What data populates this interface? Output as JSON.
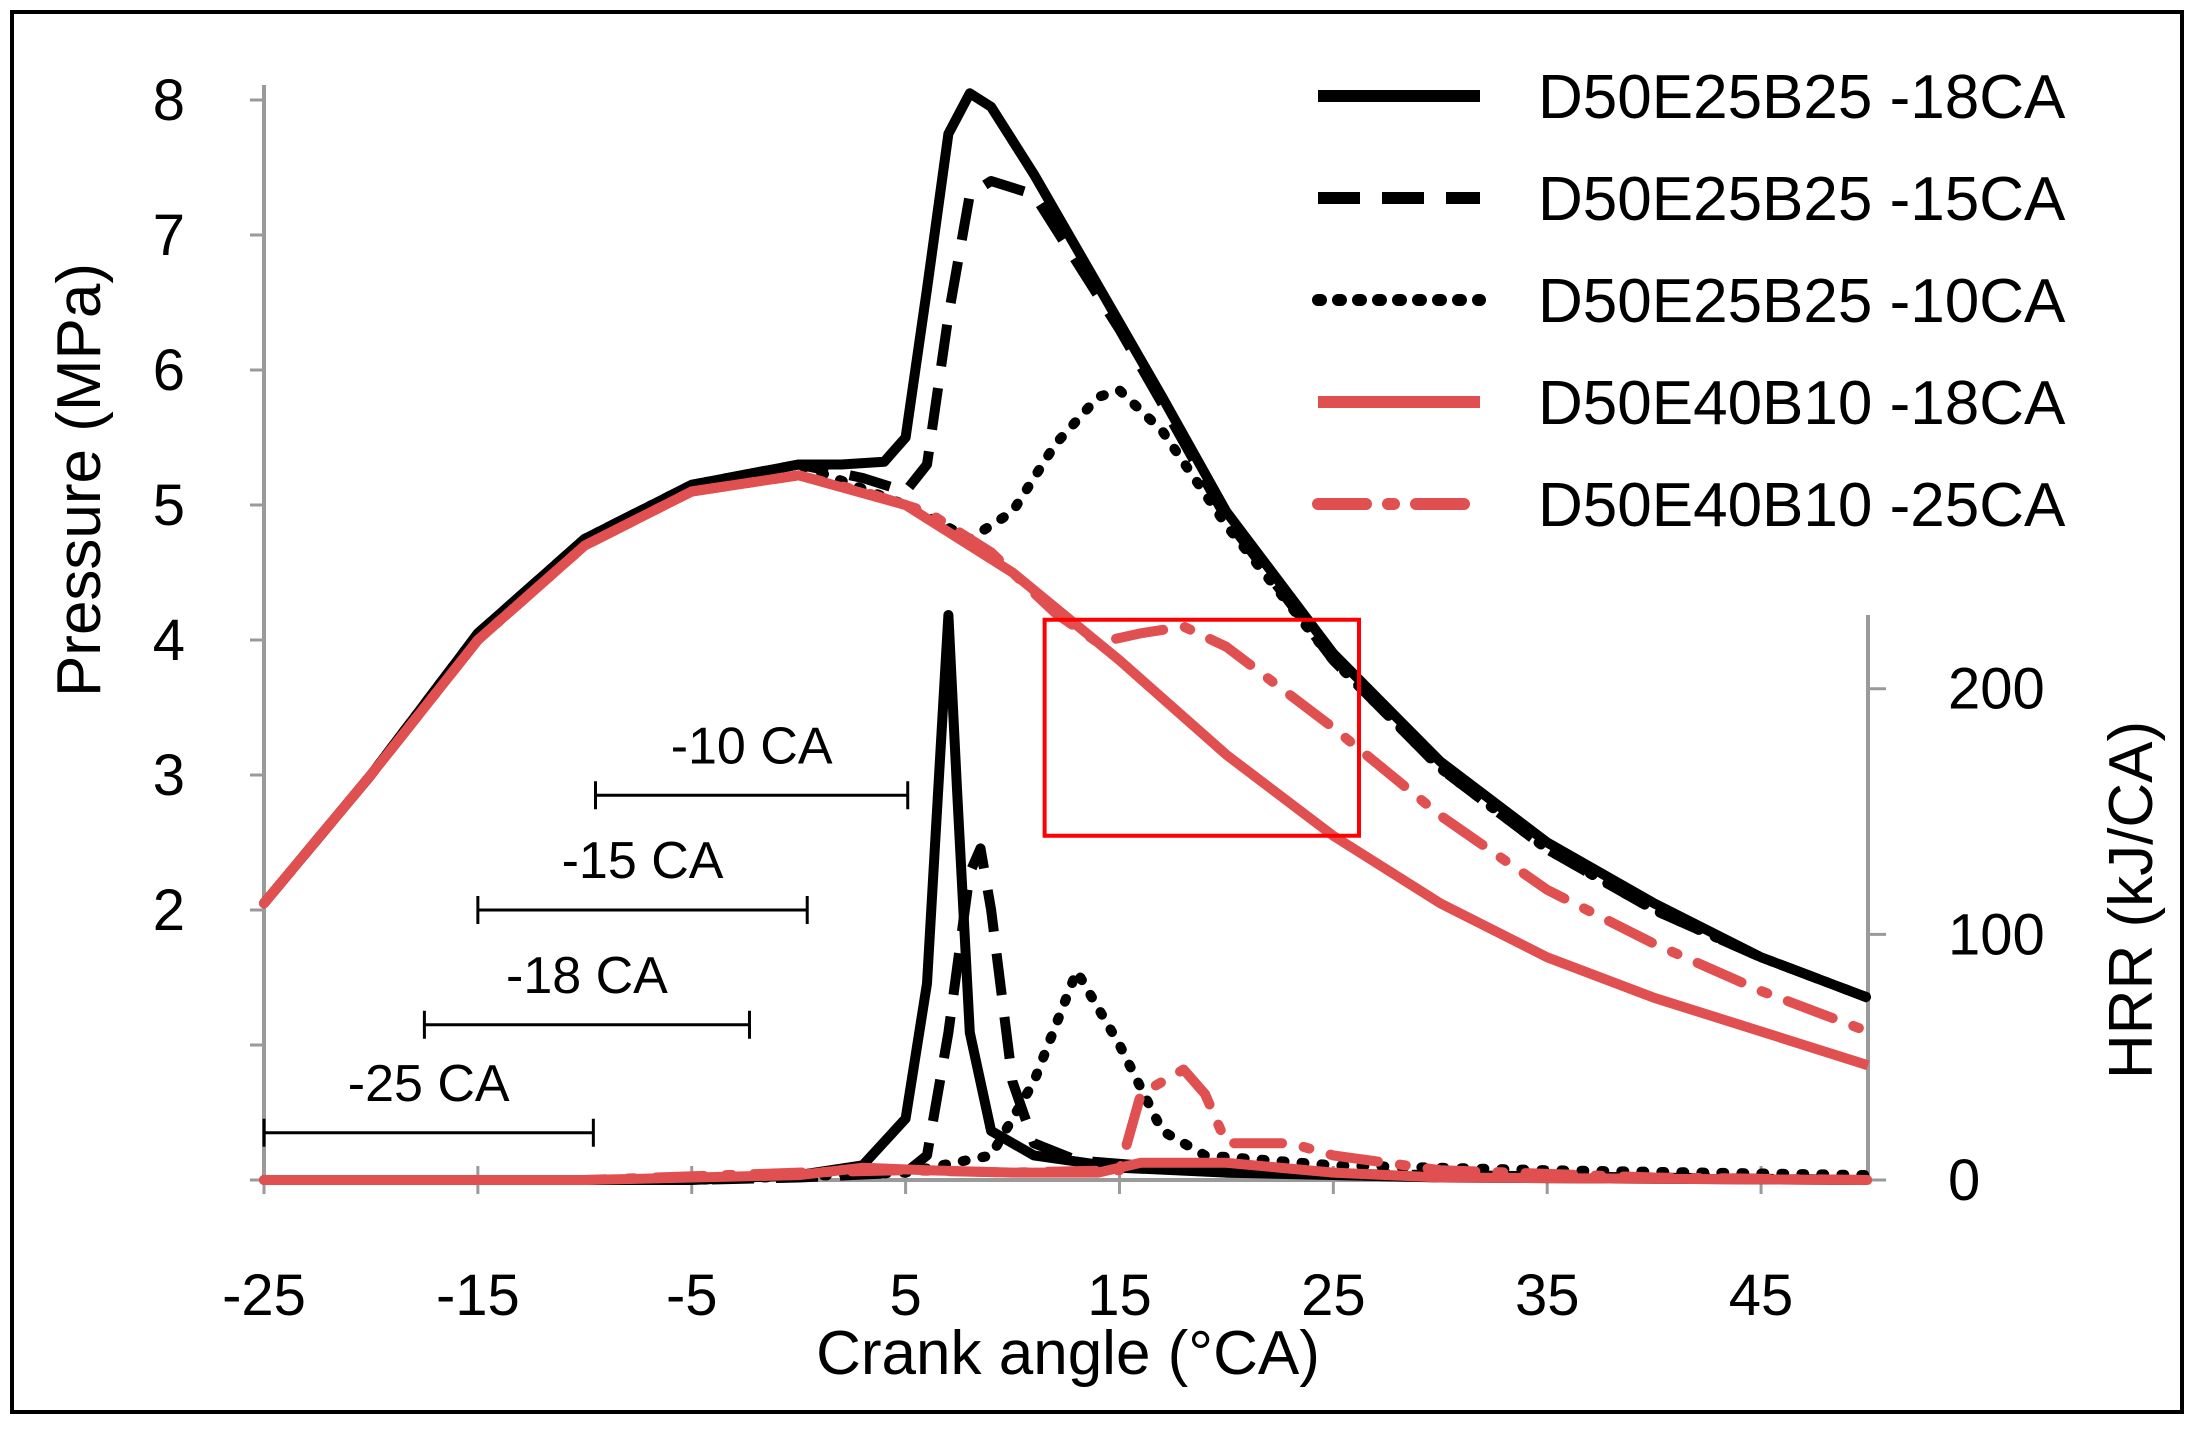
{
  "chart_data": {
    "type": "line",
    "xlabel": "Crank angle (°CA)",
    "ylabel_left": "Pressure (MPa)",
    "ylabel_right": "HRR (kJ/CA)",
    "xlim": [
      -25,
      50
    ],
    "ylim_left": [
      0,
      8
    ],
    "ylim_right": [
      0,
      230
    ],
    "x_ticks": [
      -25,
      -15,
      -5,
      5,
      15,
      25,
      35,
      45
    ],
    "y_left_ticks": [
      2,
      3,
      4,
      5,
      6,
      7,
      8
    ],
    "y_right_ticks": [
      0,
      100,
      200
    ],
    "colors": {
      "black": "#000000",
      "red": "#e05050",
      "box": "#ff0000"
    },
    "series": [
      {
        "name": "D50E25B25 -18CA",
        "color": "#000000",
        "dash": "solid",
        "axis": "left",
        "points": [
          [
            -25,
            2.05
          ],
          [
            -20,
            3.0
          ],
          [
            -15,
            4.05
          ],
          [
            -10,
            4.75
          ],
          [
            -5,
            5.15
          ],
          [
            0,
            5.3
          ],
          [
            2,
            5.3
          ],
          [
            4,
            5.32
          ],
          [
            5,
            5.5
          ],
          [
            6,
            6.6
          ],
          [
            7,
            7.75
          ],
          [
            8,
            8.05
          ],
          [
            9,
            7.95
          ],
          [
            11,
            7.45
          ],
          [
            13,
            6.9
          ],
          [
            15,
            6.35
          ],
          [
            17,
            5.8
          ],
          [
            20,
            4.95
          ],
          [
            25,
            3.9
          ],
          [
            30,
            3.1
          ],
          [
            35,
            2.5
          ],
          [
            40,
            2.05
          ],
          [
            45,
            1.65
          ],
          [
            50,
            1.35
          ]
        ]
      },
      {
        "name": "D50E25B25 -15CA",
        "color": "#000000",
        "dash": "dashed",
        "axis": "left",
        "points": [
          [
            -25,
            2.05
          ],
          [
            -20,
            3.0
          ],
          [
            -15,
            4.05
          ],
          [
            -10,
            4.75
          ],
          [
            -5,
            5.15
          ],
          [
            0,
            5.3
          ],
          [
            3,
            5.2
          ],
          [
            5,
            5.1
          ],
          [
            6,
            5.3
          ],
          [
            7,
            6.4
          ],
          [
            8,
            7.3
          ],
          [
            9,
            7.4
          ],
          [
            11,
            7.3
          ],
          [
            13,
            6.8
          ],
          [
            15,
            6.3
          ],
          [
            17,
            5.75
          ],
          [
            20,
            4.9
          ],
          [
            25,
            3.85
          ],
          [
            30,
            3.05
          ],
          [
            35,
            2.45
          ],
          [
            40,
            2.0
          ],
          [
            45,
            1.65
          ],
          [
            50,
            1.35
          ]
        ]
      },
      {
        "name": "D50E25B25 -10CA",
        "color": "#000000",
        "dash": "dotted",
        "axis": "left",
        "points": [
          [
            -25,
            2.05
          ],
          [
            -20,
            3.0
          ],
          [
            -15,
            4.05
          ],
          [
            -10,
            4.75
          ],
          [
            -5,
            5.15
          ],
          [
            0,
            5.3
          ],
          [
            5,
            5.0
          ],
          [
            8,
            4.75
          ],
          [
            10,
            4.95
          ],
          [
            12,
            5.45
          ],
          [
            14,
            5.8
          ],
          [
            15,
            5.85
          ],
          [
            17,
            5.55
          ],
          [
            20,
            4.85
          ],
          [
            25,
            3.85
          ],
          [
            30,
            3.05
          ],
          [
            35,
            2.45
          ],
          [
            40,
            2.0
          ],
          [
            45,
            1.65
          ],
          [
            50,
            1.35
          ]
        ]
      },
      {
        "name": "D50E40B10 -18CA",
        "color": "#e05050",
        "dash": "solid",
        "axis": "left",
        "points": [
          [
            -25,
            2.05
          ],
          [
            -20,
            3.0
          ],
          [
            -15,
            4.0
          ],
          [
            -10,
            4.7
          ],
          [
            -5,
            5.1
          ],
          [
            0,
            5.22
          ],
          [
            5,
            5.0
          ],
          [
            10,
            4.5
          ],
          [
            15,
            3.85
          ],
          [
            20,
            3.15
          ],
          [
            25,
            2.55
          ],
          [
            30,
            2.05
          ],
          [
            35,
            1.65
          ],
          [
            40,
            1.35
          ],
          [
            45,
            1.1
          ],
          [
            50,
            0.85
          ]
        ]
      },
      {
        "name": "D50E40B10 -25CA",
        "color": "#e05050",
        "dash": "dashdot",
        "axis": "left",
        "points": [
          [
            -25,
            2.05
          ],
          [
            -20,
            3.0
          ],
          [
            -15,
            4.0
          ],
          [
            -10,
            4.7
          ],
          [
            -5,
            5.1
          ],
          [
            0,
            5.22
          ],
          [
            3,
            5.1
          ],
          [
            6,
            4.95
          ],
          [
            9,
            4.65
          ],
          [
            12,
            4.2
          ],
          [
            14,
            3.98
          ],
          [
            16,
            4.05
          ],
          [
            18,
            4.1
          ],
          [
            20,
            3.95
          ],
          [
            25,
            3.35
          ],
          [
            30,
            2.7
          ],
          [
            35,
            2.15
          ],
          [
            40,
            1.75
          ],
          [
            45,
            1.4
          ],
          [
            50,
            1.1
          ]
        ]
      },
      {
        "name": "HRR D50E25B25 -18CA",
        "color": "#000000",
        "dash": "solid",
        "axis": "right",
        "points": [
          [
            -25,
            0
          ],
          [
            -5,
            0
          ],
          [
            0,
            2
          ],
          [
            3,
            6
          ],
          [
            5,
            25
          ],
          [
            6,
            80
          ],
          [
            6.6,
            170
          ],
          [
            7,
            230
          ],
          [
            7.4,
            160
          ],
          [
            8,
            60
          ],
          [
            9,
            20
          ],
          [
            11,
            10
          ],
          [
            15,
            5
          ],
          [
            20,
            3
          ],
          [
            30,
            1
          ],
          [
            50,
            0
          ]
        ]
      },
      {
        "name": "HRR D50E25B25 -15CA",
        "color": "#000000",
        "dash": "dashed",
        "axis": "right",
        "points": [
          [
            -25,
            0
          ],
          [
            -5,
            0
          ],
          [
            0,
            1
          ],
          [
            5,
            3
          ],
          [
            6,
            10
          ],
          [
            7,
            60
          ],
          [
            8,
            125
          ],
          [
            8.5,
            135
          ],
          [
            9,
            110
          ],
          [
            10,
            40
          ],
          [
            11,
            15
          ],
          [
            13,
            8
          ],
          [
            20,
            3
          ],
          [
            50,
            0
          ]
        ]
      },
      {
        "name": "HRR D50E25B25 -10CA",
        "color": "#000000",
        "dash": "dotted",
        "axis": "right",
        "points": [
          [
            -25,
            0
          ],
          [
            -5,
            0
          ],
          [
            5,
            3
          ],
          [
            9,
            10
          ],
          [
            11,
            40
          ],
          [
            13,
            85
          ],
          [
            15,
            55
          ],
          [
            17,
            20
          ],
          [
            19,
            10
          ],
          [
            25,
            6
          ],
          [
            35,
            4
          ],
          [
            50,
            2
          ]
        ]
      },
      {
        "name": "HRR D50E40B10 -18CA",
        "color": "#e05050",
        "dash": "solid",
        "axis": "right",
        "points": [
          [
            -25,
            0
          ],
          [
            -10,
            0
          ],
          [
            0,
            2
          ],
          [
            3,
            5
          ],
          [
            6,
            4
          ],
          [
            10,
            3
          ],
          [
            14,
            3
          ],
          [
            16,
            7
          ],
          [
            20,
            7
          ],
          [
            25,
            3
          ],
          [
            30,
            1
          ],
          [
            50,
            0
          ]
        ]
      },
      {
        "name": "HRR D50E40B10 -25CA",
        "color": "#e05050",
        "dash": "dashdot",
        "axis": "right",
        "points": [
          [
            -25,
            0
          ],
          [
            -10,
            0
          ],
          [
            0,
            3
          ],
          [
            5,
            4
          ],
          [
            10,
            3
          ],
          [
            15,
            4
          ],
          [
            16,
            35
          ],
          [
            18,
            45
          ],
          [
            19,
            35
          ],
          [
            20,
            15
          ],
          [
            23,
            15
          ],
          [
            25,
            10
          ],
          [
            30,
            4
          ],
          [
            40,
            1
          ],
          [
            50,
            0
          ]
        ]
      }
    ],
    "annotations": [
      {
        "label": "-10 CA",
        "x_start": -9.5,
        "x_end": 5.1,
        "y": 2.85
      },
      {
        "label": "-15 CA",
        "x_start": -15,
        "x_end": 0.4,
        "y": 2.0
      },
      {
        "label": "-18 CA",
        "x_start": -17.5,
        "x_end": -2.3,
        "y": 1.15
      },
      {
        "label": "-25 CA",
        "x_start": -25,
        "x_end": -9.6,
        "y": 0.35
      }
    ],
    "highlight_box": {
      "x_start": 11.5,
      "x_end": 26.2,
      "y_low": 2.55,
      "y_high": 4.15
    },
    "legend": {
      "position": "top-right"
    }
  }
}
